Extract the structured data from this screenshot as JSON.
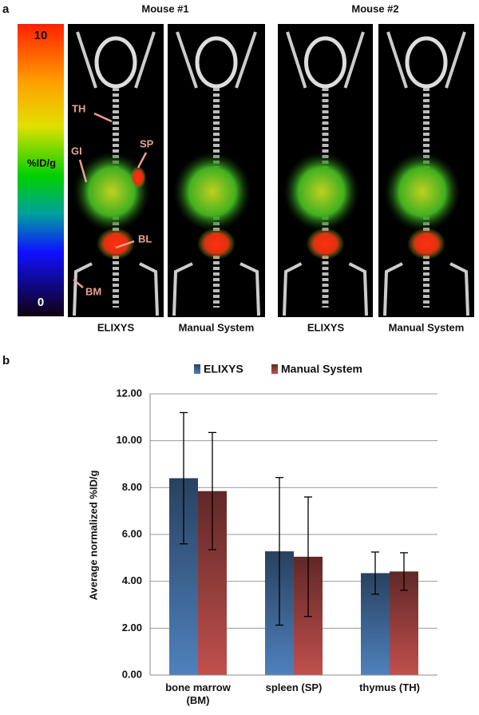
{
  "panel_a": {
    "label": "a",
    "colorbar": {
      "vmax": 10,
      "vmin": 0,
      "label": "%ID/g"
    },
    "groups": [
      "Mouse #1",
      "Mouse #2"
    ],
    "image_labels": [
      "ELIXYS",
      "Manual System",
      "ELIXYS",
      "Manual System"
    ],
    "annotations": [
      "TH",
      "SP",
      "GI",
      "BL",
      "BM"
    ]
  },
  "chart_data": {
    "type": "bar",
    "panel_label": "b",
    "ylabel": "Average normalized %ID/g",
    "categories": [
      "bone marrow (BM)",
      "spleen (SP)",
      "thymus (TH)"
    ],
    "series": [
      {
        "name": "ELIXYS",
        "color": "#4f81bd",
        "values": [
          8.4,
          5.28,
          4.35
        ],
        "errors": [
          2.8,
          3.15,
          0.9
        ]
      },
      {
        "name": "Manual System",
        "color": "#c0504d",
        "values": [
          7.85,
          5.05,
          4.42
        ],
        "errors": [
          2.5,
          2.55,
          0.8
        ]
      }
    ],
    "ylim": [
      0,
      12
    ],
    "yticks": [
      {
        "value": 0,
        "label": "0.00"
      },
      {
        "value": 2,
        "label": "2.00"
      },
      {
        "value": 4,
        "label": "4.00"
      },
      {
        "value": 6,
        "label": "6.00"
      },
      {
        "value": 8,
        "label": "8.00"
      },
      {
        "value": 10,
        "label": "10.00"
      },
      {
        "value": 12,
        "label": "12.00"
      }
    ],
    "grid": true,
    "legend": "top"
  }
}
